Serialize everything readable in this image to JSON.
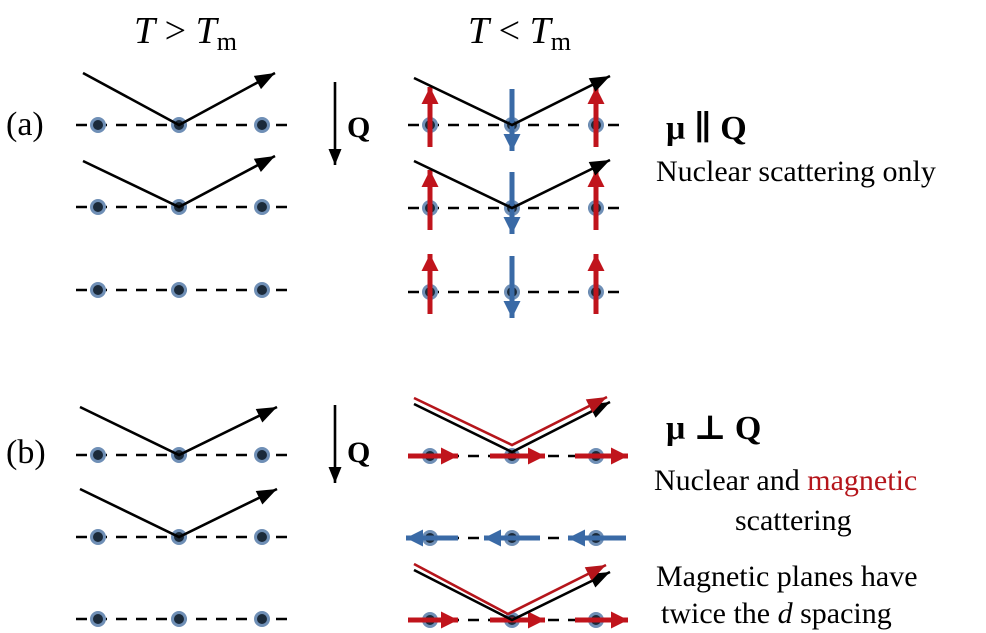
{
  "headers": {
    "left": {
      "T": "T",
      "op": ">",
      "Tm": "T",
      "sub": "m"
    },
    "right": {
      "T": "T",
      "op": "<",
      "Tm": "T",
      "sub": "m"
    }
  },
  "panels": {
    "a": {
      "label": "(a)",
      "q_label": "Q",
      "condition": "μ ∥ Q",
      "description": "Nuclear scattering only"
    },
    "b": {
      "label": "(b)",
      "q_label": "Q",
      "condition": "μ ⊥ Q",
      "desc_line1_a": "Nuclear and ",
      "desc_line1_b": "magnetic",
      "desc_line2": "scattering",
      "desc_line3": "Magnetic planes have",
      "desc_line4_a": "twice the ",
      "desc_line4_b": "d",
      "desc_line4_c": " spacing"
    }
  },
  "colors": {
    "atom_fill": "#1b2a3a",
    "atom_ring": "#6f8fb6",
    "spin_up": "#c0141c",
    "spin_down": "#3a6aa6",
    "magnetic_ray": "#b5151b",
    "ray": "#000000"
  }
}
